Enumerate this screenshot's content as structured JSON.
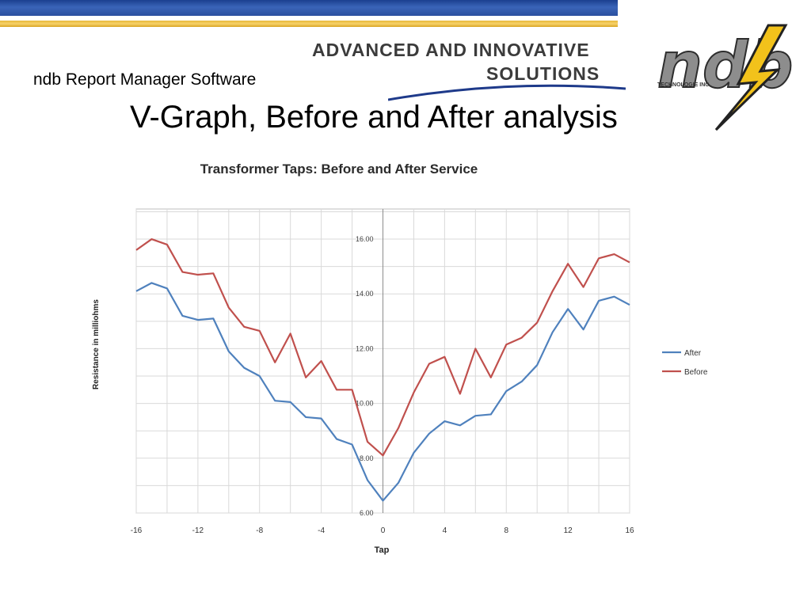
{
  "header": {
    "subtitle": "ndb Report Manager Software",
    "title": "V-Graph, Before and After analysis",
    "brand_line1": "ADVANCED AND INNOVATIVE",
    "brand_line2": "SOLUTIONS",
    "logo_text": "ndb",
    "logo_subtext": "TECHNOLOGIE INC."
  },
  "colors": {
    "bar_blue": "#2a4f9f",
    "bar_gold": "#f0c453",
    "after": "#4f81bd",
    "before": "#c0504d",
    "lightning": "#f2c21b"
  },
  "icons": [
    "lightning-bolt-icon"
  ],
  "chart_data": {
    "type": "line",
    "title": "Transformer Taps: Before and After Service",
    "xlabel": "Tap",
    "ylabel": "Resistance in milliohms",
    "xlim": [
      -16,
      16
    ],
    "ylim": [
      6,
      17.1
    ],
    "xticks": [
      -16,
      -12,
      -8,
      -4,
      0,
      4,
      8,
      12,
      16
    ],
    "xtick_labels": [
      "-16",
      "-12",
      "-8",
      "-4",
      "0",
      "4",
      "8",
      "12",
      "16"
    ],
    "yticks": [
      6,
      8,
      10,
      12,
      14,
      16
    ],
    "ytick_labels": [
      "6.00",
      "8.00",
      "10.00",
      "12.00",
      "14.00",
      "16.00"
    ],
    "grid": true,
    "legend": "right",
    "x": [
      -16,
      -15,
      -14,
      -13,
      -12,
      -11,
      -10,
      -9,
      -8,
      -7,
      -6,
      -5,
      -4,
      -3,
      -2,
      -1,
      0,
      1,
      2,
      3,
      4,
      5,
      6,
      7,
      8,
      9,
      10,
      11,
      12,
      13,
      14,
      15,
      16
    ],
    "series": [
      {
        "name": "After",
        "color": "#4f81bd",
        "values": [
          14.1,
          14.4,
          14.2,
          13.2,
          13.05,
          13.1,
          11.9,
          11.3,
          11.0,
          10.1,
          10.05,
          9.5,
          9.45,
          8.7,
          8.5,
          7.2,
          6.45,
          7.1,
          8.2,
          8.9,
          9.35,
          9.2,
          9.55,
          9.6,
          10.45,
          10.8,
          11.4,
          12.6,
          13.45,
          12.7,
          13.75,
          13.9,
          13.6
        ]
      },
      {
        "name": "Before",
        "color": "#c0504d",
        "values": [
          15.6,
          16.0,
          15.8,
          14.8,
          14.7,
          14.75,
          13.5,
          12.8,
          12.65,
          11.5,
          12.55,
          10.95,
          11.55,
          10.5,
          10.5,
          8.6,
          8.1,
          9.1,
          10.4,
          11.45,
          11.7,
          10.35,
          12.0,
          10.95,
          12.15,
          12.4,
          12.95,
          14.1,
          15.1,
          14.25,
          15.3,
          15.45,
          15.15
        ]
      }
    ]
  }
}
